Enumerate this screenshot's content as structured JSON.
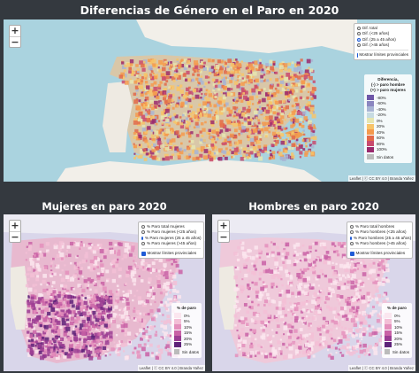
{
  "titles": {
    "main": "Diferencias de Género en el Paro en 2020",
    "left": "Mujeres en paro 2020",
    "right": "Hombres en paro 2020"
  },
  "zoom": {
    "in": "+",
    "out": "−"
  },
  "attribution": "Leaflet | ⓒ CC BY 4.0 | Branda Yañez",
  "maps": {
    "main": {
      "options": [
        "Dif. total",
        "Dif. (<25 años)",
        "Dif. (25 a 45 años)",
        "Dif. (>45 años)"
      ],
      "selected_index": 2,
      "checkbox": "Mostrar límites provinciales",
      "legend": {
        "title": "Diferencia,\n(-) > paro hombre\n(+) > paro mujeres",
        "entries": [
          "-80%",
          "-60%",
          "-40%",
          "-20%",
          "0%",
          "20%",
          "40%",
          "60%",
          "80%",
          "100%"
        ],
        "colors": [
          "#6e57a8",
          "#8a86c0",
          "#a8b4d4",
          "#c6dbe2",
          "#e6e6b0",
          "#f7c46a",
          "#f49a4e",
          "#e26a4a",
          "#c94a6e",
          "#9a2a6e"
        ],
        "no_data": "Sin datos"
      }
    },
    "left": {
      "options": [
        "% Paro total mujeres",
        "% Paro mujeres (<25 años)",
        "% Paro mujeres (25 a 45 años)",
        "% Paro mujeres (>45 años)"
      ],
      "selected_index": 2,
      "checkbox": "Mostrar límites provinciales",
      "legend": {
        "title": "% de paro",
        "entries": [
          "0%",
          "5%",
          "10%",
          "15%",
          "20%",
          "25%"
        ],
        "colors": [
          "#fbe6ef",
          "#f3bfd6",
          "#e48fbc",
          "#c962a6",
          "#9b3d93",
          "#5e2279"
        ],
        "no_data": "Sin datos"
      }
    },
    "right": {
      "options": [
        "% Paro total hombres",
        "% Paro hombres (<25 años)",
        "% Paro hombres (25 a 45 años)",
        "% Paro hombres (>45 años)"
      ],
      "selected_index": 2,
      "checkbox": "Mostrar límites provinciales",
      "legend": {
        "title": "% de paro",
        "entries": [
          "0%",
          "5%",
          "10%",
          "15%",
          "20%",
          "25%"
        ],
        "colors": [
          "#fbe6ef",
          "#f3bfd6",
          "#e48fbc",
          "#c962a6",
          "#9b3d93",
          "#5e2279"
        ],
        "no_data": "Sin datos"
      }
    }
  }
}
